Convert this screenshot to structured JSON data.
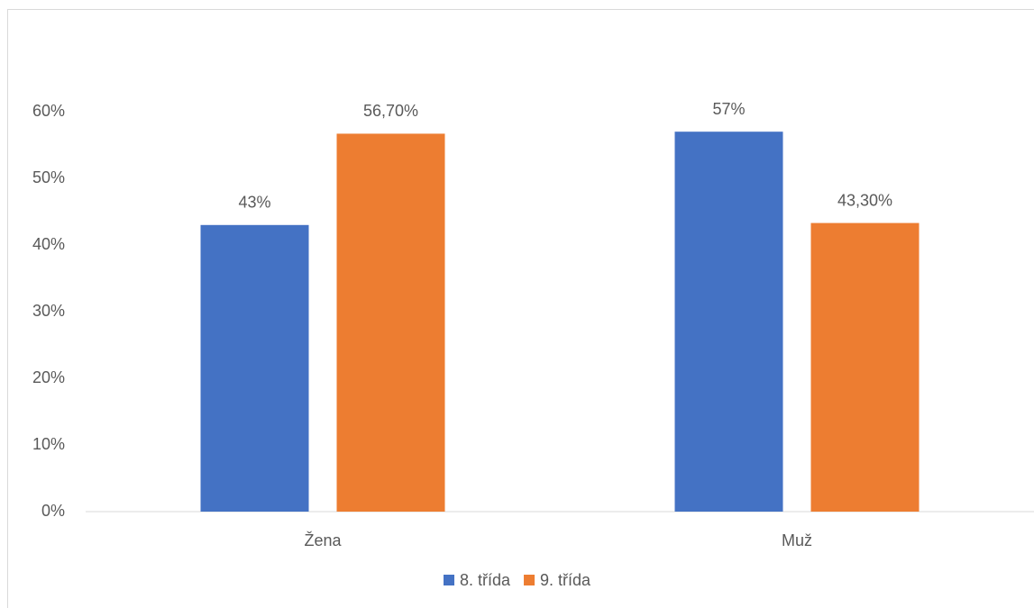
{
  "chart_data": {
    "type": "bar",
    "categories": [
      "Žena",
      "Muž"
    ],
    "series": [
      {
        "name": "8. třída",
        "color": "#4472c4",
        "values": [
          43,
          57
        ],
        "value_labels": [
          "43%",
          "57%"
        ]
      },
      {
        "name": "9. třída",
        "color": "#ed7d31",
        "values": [
          56.7,
          43.3
        ],
        "value_labels": [
          "56,70%",
          "43,30%"
        ]
      }
    ],
    "ylim": [
      0,
      60
    ],
    "yticks": [
      {
        "value": 0,
        "label": "0%"
      },
      {
        "value": 10,
        "label": "10%"
      },
      {
        "value": 20,
        "label": "20%"
      },
      {
        "value": 30,
        "label": "30%"
      },
      {
        "value": 40,
        "label": "40%"
      },
      {
        "value": 50,
        "label": "50%"
      },
      {
        "value": 60,
        "label": "60%"
      }
    ],
    "grid": false,
    "legend": "bottom"
  }
}
